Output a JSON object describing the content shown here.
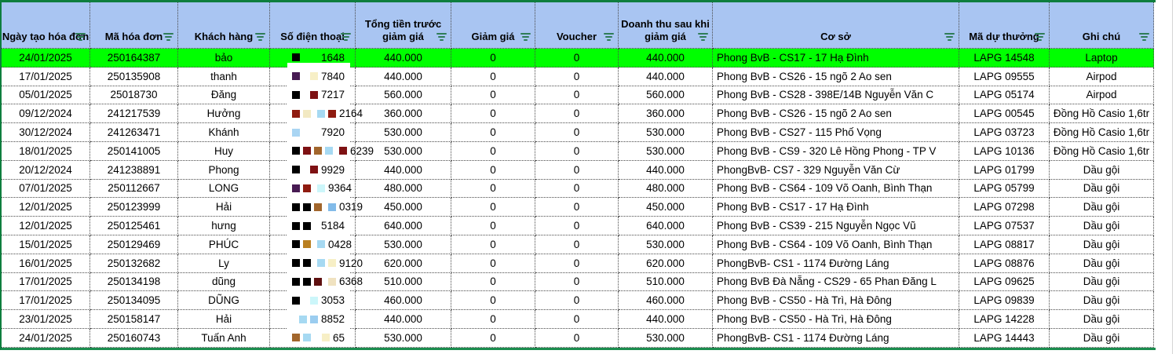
{
  "colors": {
    "header_bg": "#a9c5f2",
    "selected_row_bg": "#00ff00",
    "table_border_green": "#0e7e3e",
    "filter_icon": "#2f7d57",
    "redaction_bg": "#ffffff"
  },
  "selected_row": 0,
  "table": {
    "headers": [
      {
        "label": "Ngày tạo hóa đơn"
      },
      {
        "label": "Mã hóa đơn"
      },
      {
        "label": "Khách hàng"
      },
      {
        "label": "Số điện thoại"
      },
      {
        "label": "Tổng tiền trước giảm giá"
      },
      {
        "label": "Giảm giá"
      },
      {
        "label": "Voucher"
      },
      {
        "label": "Doanh thu sau khi giảm giá"
      },
      {
        "label": "Cơ sở"
      },
      {
        "label": "Mã dự thưởng"
      },
      {
        "label": "Ghi chú"
      }
    ],
    "rows": [
      {
        "date": "24/01/2025",
        "code": "250164387",
        "customer": "bảo",
        "phone_digits": "1648",
        "phone_blocks": [
          "#000000"
        ],
        "phone_pre": [],
        "total": "440.000",
        "discount": "0",
        "voucher": "0",
        "revenue": "440.000",
        "facility": "Phong BvB - CS17  - 17 Hạ Đình",
        "prize": "LAPG 14548",
        "note": "Laptop"
      },
      {
        "date": "17/01/2025",
        "code": "250135908",
        "customer": "thanh",
        "phone_digits": "7840",
        "phone_blocks": [
          "#471a52"
        ],
        "phone_pre": [
          "#f7efc6"
        ],
        "total": "440.000",
        "discount": "0",
        "voucher": "0",
        "revenue": "440.000",
        "facility": "Phong BvB - CS26 - 15 ngõ 2 Ao sen",
        "prize": "LAPG 09555",
        "note": "Airpod"
      },
      {
        "date": "05/01/2025",
        "code": "25018730",
        "customer": "Đăng",
        "phone_digits": "7217",
        "phone_blocks": [
          "#000000"
        ],
        "phone_pre": [
          "#7e1113"
        ],
        "total": "560.000",
        "discount": "0",
        "voucher": "0",
        "revenue": "560.000",
        "facility": "Phong BvB - CS28 - 398E/14B Nguyễn Văn C",
        "prize": "LAPG 05174",
        "note": "Airpod"
      },
      {
        "date": "09/12/2024",
        "code": "241217539",
        "customer": "Hưởng",
        "phone_digits": "2164",
        "phone_blocks": [
          "#8f1b10",
          "#f2e9c2"
        ],
        "phone_pre": [
          "#a6d9f2",
          "#8f1b10"
        ],
        "total": "360.000",
        "discount": "0",
        "voucher": "0",
        "revenue": "360.000",
        "facility": "Phong BvB - CS26 - 15 ngõ 2 Ao sen",
        "prize": "LAPG 00545",
        "note": "Đồng Hồ Casio 1,6tr"
      },
      {
        "date": "30/12/2024",
        "code": "241263471",
        "customer": "Khánh",
        "phone_digits": "7920",
        "phone_blocks": [
          "#a9d5f3"
        ],
        "phone_pre": [],
        "total": "530.000",
        "discount": "0",
        "voucher": "0",
        "revenue": "530.000",
        "facility": "Phong BvB - CS27 - 115 Phố Vọng",
        "prize": "LAPG 03723",
        "note": "Đồng Hồ Casio 1,6tr"
      },
      {
        "date": "18/01/2025",
        "code": "250141005",
        "customer": "Huy",
        "phone_digits": "6239",
        "phone_blocks": [
          "#000000",
          "#7e1113",
          "#a2662c",
          "#a6d9f2"
        ],
        "phone_pre": [
          "#7e1113"
        ],
        "total": "530.000",
        "discount": "0",
        "voucher": "0",
        "revenue": "530.000",
        "facility": "Phong BvB - CS9 - 320 Lê Hồng Phong - TP V",
        "prize": "LAPG 10136",
        "note": "Đồng Hồ Casio 1,6tr"
      },
      {
        "date": "20/12/2024",
        "code": "241238891",
        "customer": "Phong",
        "phone_digits": "9929",
        "phone_blocks": [
          "#000000"
        ],
        "phone_pre": [
          "#7e1113"
        ],
        "total": "440.000",
        "discount": "0",
        "voucher": "0",
        "revenue": "440.000",
        "facility": "PhongBvB- CS7 - 329 Nguyễn Văn Cừ",
        "prize": "LAPG 01799",
        "note": "Dầu gội"
      },
      {
        "date": "07/01/2025",
        "code": "250112667",
        "customer": "LONG",
        "phone_digits": "9364",
        "phone_blocks": [
          "#471a52",
          "#8f1b10"
        ],
        "phone_pre": [
          "#ccf6fa"
        ],
        "total": "480.000",
        "discount": "0",
        "voucher": "0",
        "revenue": "480.000",
        "facility": "Phong BvB - CS64 - 109 Võ Oanh, Bình Thạn",
        "prize": "LAPG 05799",
        "note": "Dầu gội"
      },
      {
        "date": "12/01/2025",
        "code": "250123999",
        "customer": "Hải",
        "phone_digits": "0319",
        "phone_blocks": [
          "#000000",
          "#000000",
          "#a2662c"
        ],
        "phone_pre": [
          "#82bbe9"
        ],
        "total": "450.000",
        "discount": "0",
        "voucher": "0",
        "revenue": "450.000",
        "facility": "Phong BvB - CS17  - 17 Hạ Đình",
        "prize": "LAPG 07298",
        "note": "Dầu gội"
      },
      {
        "date": "12/01/2025",
        "code": "250125461",
        "customer": "hưng",
        "phone_digits": "5184",
        "phone_blocks": [
          "#000000",
          "#000000"
        ],
        "phone_pre": [],
        "total": "640.000",
        "discount": "0",
        "voucher": "0",
        "revenue": "640.000",
        "facility": "Phong BvB - CS39 - 215 Nguyễn Ngọc Vũ",
        "prize": "LAPG 07537",
        "note": "Dầu gội"
      },
      {
        "date": "15/01/2025",
        "code": "250129469",
        "customer": "PHÚC",
        "phone_digits": "0428",
        "phone_blocks": [
          "#000000",
          "#b97f20"
        ],
        "phone_pre": [
          "#a6d9f2"
        ],
        "total": "530.000",
        "discount": "0",
        "voucher": "0",
        "revenue": "530.000",
        "facility": "Phong BvB - CS64 - 109 Võ Oanh, Bình Thạn",
        "prize": "LAPG 08817",
        "note": "Dầu gội"
      },
      {
        "date": "16/01/2025",
        "code": "250132682",
        "customer": "Ly",
        "phone_digits": "9120",
        "phone_blocks": [
          "#000000",
          "#000000"
        ],
        "phone_pre": [
          "#a6d9f2",
          "#f7efc6"
        ],
        "total": "620.000",
        "discount": "0",
        "voucher": "0",
        "revenue": "620.000",
        "facility": "PhongBvB- CS1 - 1174 Đường Láng",
        "prize": "LAPG 08876",
        "note": "Dầu gội"
      },
      {
        "date": "17/01/2025",
        "code": "250134198",
        "customer": "dũng",
        "phone_digits": "6368",
        "phone_blocks": [
          "#000000",
          "#000000",
          "#5e1010"
        ],
        "phone_pre": [
          "#f0e2c0"
        ],
        "total": "510.000",
        "discount": "0",
        "voucher": "0",
        "revenue": "510.000",
        "facility": "Phong BvB Đà Nẵng - CS29 - 65 Phan Đăng L",
        "prize": "LAPG 09625",
        "note": "Dầu gội"
      },
      {
        "date": "17/01/2025",
        "code": "250134095",
        "customer": "DŨNG",
        "phone_digits": "3053",
        "phone_blocks": [
          "#000000"
        ],
        "phone_pre": [
          "#ccf6fa"
        ],
        "total": "460.000",
        "discount": "0",
        "voucher": "0",
        "revenue": "460.000",
        "facility": "Phong BvB - CS50 -  Hà Trì, Hà Đông",
        "prize": "LAPG 09839",
        "note": "Dầu gội"
      },
      {
        "date": "23/01/2025",
        "code": "250158147",
        "customer": "Hải",
        "phone_digits": "8852",
        "phone_blocks": [],
        "phone_pre": [
          "#a6d9f2",
          "#9bcdf0"
        ],
        "total": "440.000",
        "discount": "0",
        "voucher": "0",
        "revenue": "440.000",
        "facility": "Phong BvB - CS50 -  Hà Trì, Hà Đông",
        "prize": "LAPG 14228",
        "note": "Dầu gội"
      },
      {
        "date": "24/01/2025",
        "code": "250160743",
        "customer": "Tuấn Anh",
        "phone_digits": "65",
        "phone_blocks": [
          "#a2662c",
          "#a6d9f2"
        ],
        "phone_pre": [
          "#f7efc6"
        ],
        "total": "530.000",
        "discount": "0",
        "voucher": "0",
        "revenue": "530.000",
        "facility": "PhongBvB- CS1 - 1174 Đường Láng",
        "prize": "LAPG 14443",
        "note": "Dầu gội"
      }
    ]
  }
}
